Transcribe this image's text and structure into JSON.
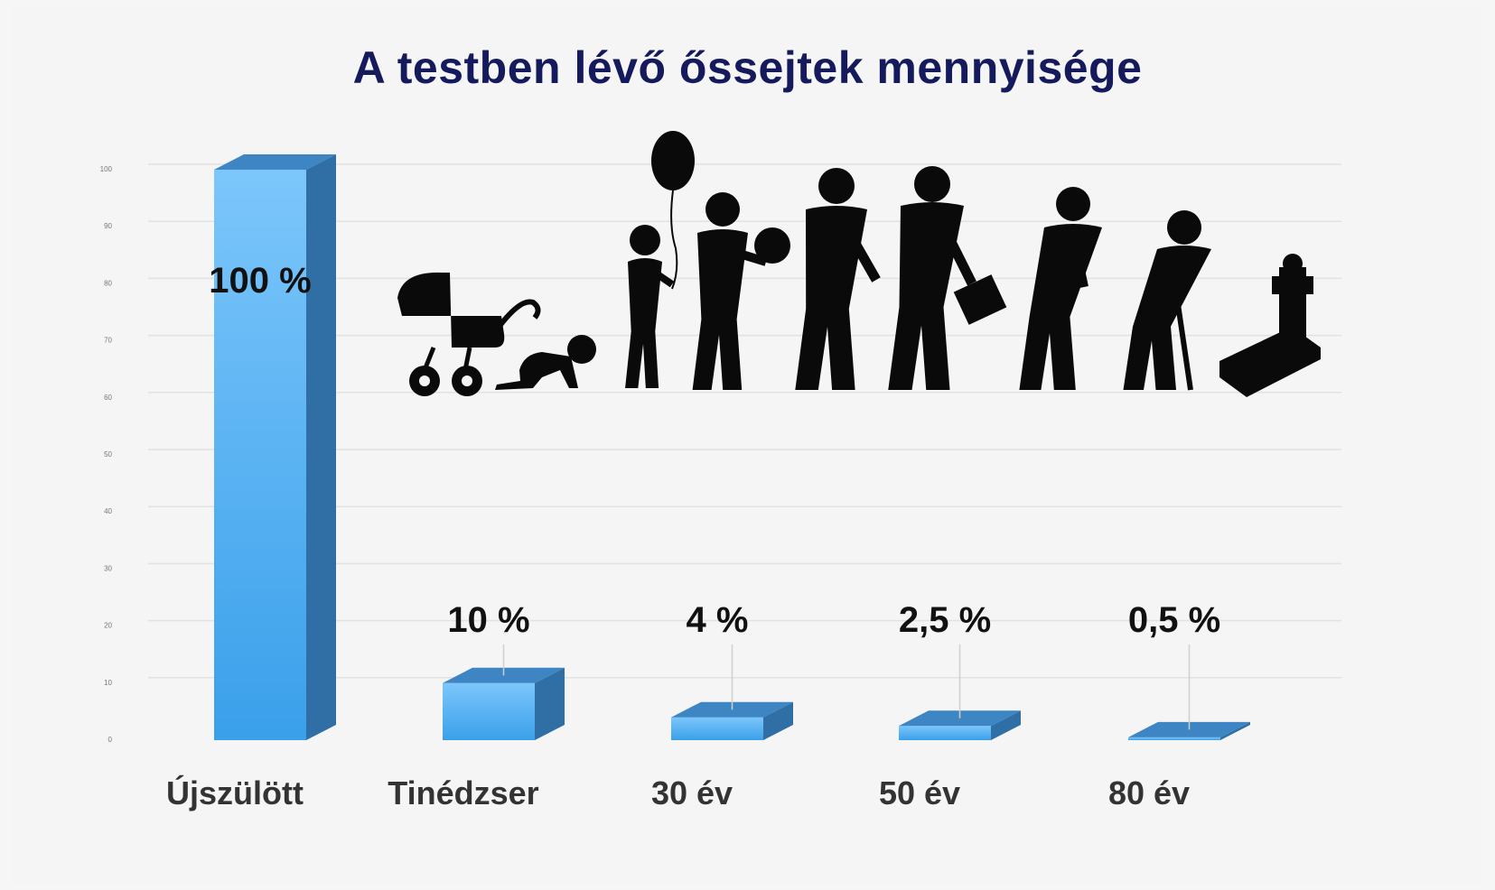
{
  "chart_data": {
    "type": "bar",
    "title": "A testben lévő őssejtek mennyisége",
    "categories": [
      "Újszülött",
      "Tinédzser",
      "30 év",
      "50 év",
      "80 év"
    ],
    "values": [
      100,
      10,
      4,
      2.5,
      0.5
    ],
    "data_labels": [
      "100 %",
      "10 %",
      "4 %",
      "2,5 %",
      "0,5 %"
    ],
    "yticks": [
      0,
      10,
      20,
      30,
      40,
      50,
      60,
      70,
      80,
      90,
      100
    ],
    "ylim": [
      0,
      100
    ],
    "grid": true,
    "legend": "none",
    "bar_color": "#4aa8ee",
    "bar_side_color": "#2f6fa6",
    "bar_top_color": "#3d86c3",
    "icons": [
      "pram-icon",
      "crawling-baby-icon",
      "child-with-balloon-icon",
      "boy-with-ball-icon",
      "man-icon",
      "man-with-briefcase-icon",
      "stooping-man-icon",
      "elderly-man-with-cane-icon",
      "gravestone-icon"
    ]
  }
}
